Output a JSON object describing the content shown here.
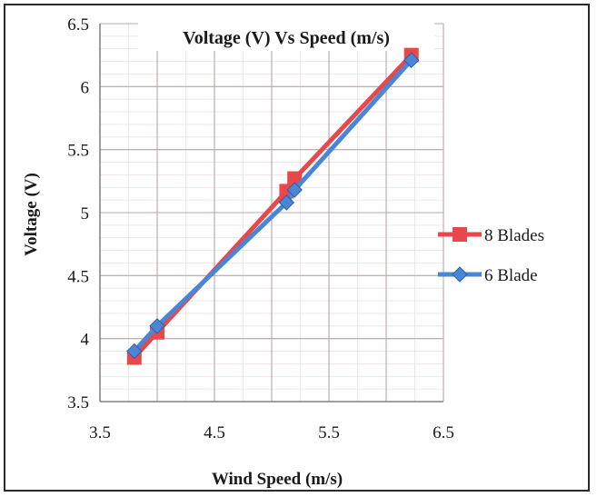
{
  "chart_data": {
    "type": "line",
    "title": "Voltage (V) Vs Speed (m/s)",
    "xlabel": "Wind Speed (m/s)",
    "ylabel": "Voltage (V)",
    "xlim": [
      3.5,
      6.5
    ],
    "ylim": [
      3.5,
      6.5
    ],
    "x_ticks": [
      "3.5",
      "4.5",
      "5.5",
      "6.5"
    ],
    "y_ticks": [
      "3.5",
      "4",
      "4.5",
      "5",
      "5.5",
      "6",
      "6.5"
    ],
    "grid": true,
    "legend_position": "right",
    "series": [
      {
        "name": "8 Blades",
        "color": "#e8474b",
        "marker": "square",
        "x": [
          3.8,
          4.0,
          5.13,
          5.2,
          6.22
        ],
        "y": [
          3.85,
          4.05,
          5.17,
          5.27,
          6.25
        ]
      },
      {
        "name": "6 Blade",
        "color": "#4a86d6",
        "marker": "diamond",
        "x": [
          3.8,
          4.0,
          5.13,
          5.2,
          6.22
        ],
        "y": [
          3.9,
          4.1,
          5.08,
          5.18,
          6.21
        ]
      }
    ]
  }
}
